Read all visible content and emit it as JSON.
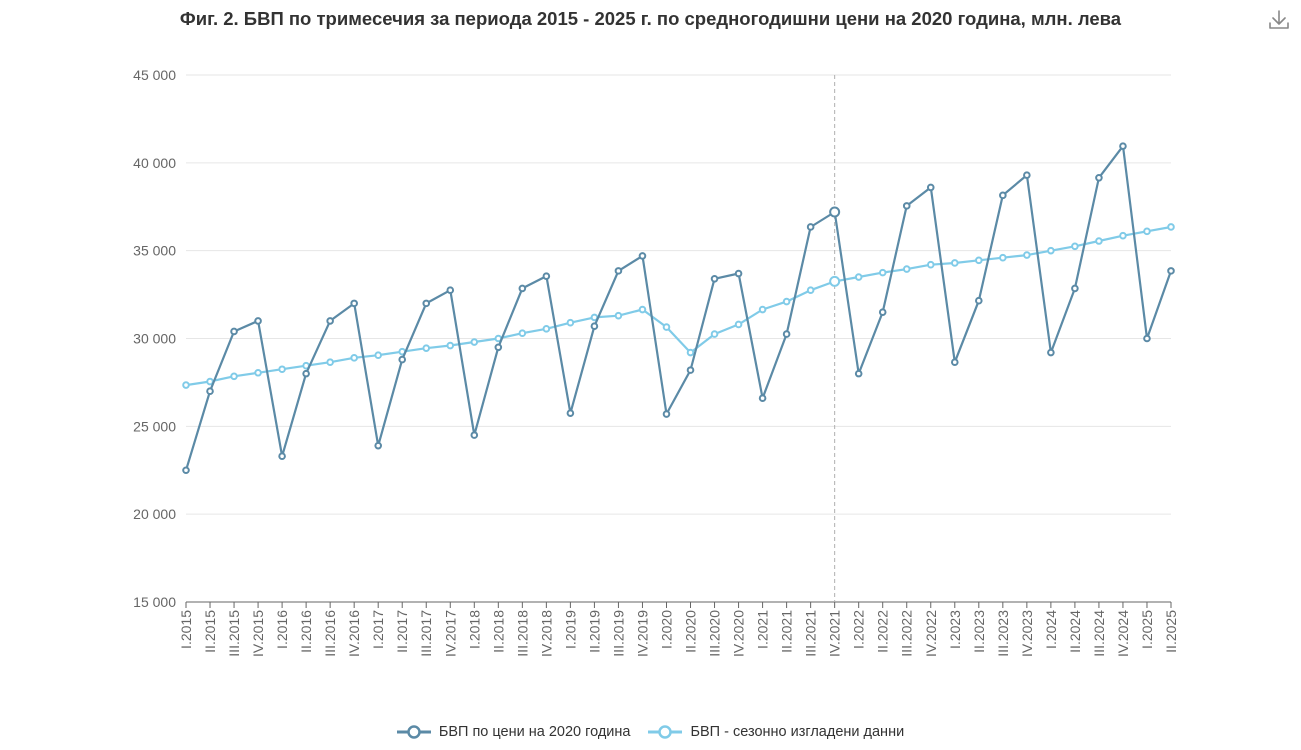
{
  "title": "Фиг. 2. БВП по тримесечия за периода 2015 - 2025 г. по средногодишни цени на 2020 година, млн. лева",
  "download_icon": "download-icon",
  "colors": {
    "series1": "#5b8aa6",
    "series2": "#80cbe8",
    "marker_line": "#cccccc",
    "grid": "#e6e6e6"
  },
  "chart_data": {
    "type": "line",
    "title": "Фиг. 2. БВП по тримесечия за периода 2015 - 2025 г. по средногодишни цени на 2020 година, млн. лева",
    "x": [
      "I.2015",
      "II.2015",
      "III.2015",
      "IV.2015",
      "I.2016",
      "II.2016",
      "III.2016",
      "IV.2016",
      "I.2017",
      "II.2017",
      "III.2017",
      "IV.2017",
      "I.2018",
      "II.2018",
      "III.2018",
      "IV.2018",
      "I.2019",
      "II.2019",
      "III.2019",
      "IV.2019",
      "I.2020",
      "II.2020",
      "III.2020",
      "IV.2020",
      "I.2021",
      "II.2021",
      "III.2021",
      "IV.2021",
      "I.2022",
      "II.2022",
      "III.2022",
      "IV.2022",
      "I.2023",
      "II.2023",
      "III.2023",
      "IV.2023",
      "I.2024",
      "II.2024",
      "III.2024",
      "IV.2024",
      "I.2025",
      "II.2025"
    ],
    "ylim": [
      15000,
      45000
    ],
    "yticks": [
      "15 000",
      "20 000",
      "25 000",
      "30 000",
      "35 000",
      "40 000",
      "45 000"
    ],
    "ytick_values": [
      15000,
      20000,
      25000,
      30000,
      35000,
      40000,
      45000
    ],
    "marker_x": "IV.2021",
    "series": [
      {
        "name": "БВП  по цени на 2020 година",
        "values": [
          22500,
          27000,
          30400,
          31000,
          23300,
          28000,
          31000,
          32000,
          23900,
          28800,
          32000,
          32750,
          24500,
          29500,
          32850,
          33550,
          25750,
          30700,
          33850,
          34700,
          25700,
          28200,
          33400,
          33700,
          26600,
          30250,
          36350,
          37200,
          28000,
          31500,
          37550,
          38600,
          28650,
          32150,
          38150,
          39300,
          29200,
          32850,
          39150,
          40950,
          30000,
          33850
        ]
      },
      {
        "name": "БВП - сезонно изгладени данни",
        "values": [
          27350,
          27550,
          27850,
          28050,
          28250,
          28450,
          28650,
          28900,
          29050,
          29250,
          29450,
          29600,
          29800,
          30000,
          30300,
          30550,
          30900,
          31200,
          31300,
          31650,
          30650,
          29200,
          30250,
          30800,
          31650,
          32100,
          32750,
          33250,
          33500,
          33750,
          33950,
          34200,
          34300,
          34450,
          34600,
          34750,
          35000,
          35250,
          35550,
          35850,
          36100,
          36350
        ]
      }
    ]
  },
  "legend": {
    "series1_label": "БВП  по цени на 2020 година",
    "series2_label": "БВП - сезонно изгладени данни"
  }
}
